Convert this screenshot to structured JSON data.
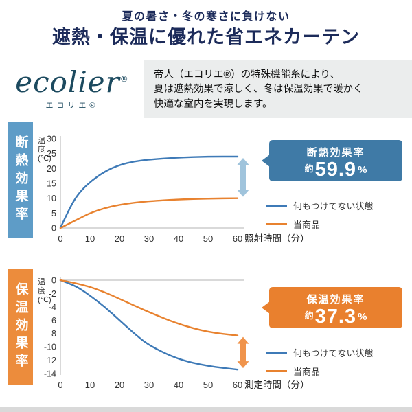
{
  "header": {
    "subtitle": "夏の暑さ・冬の寒さに負けない",
    "title": "遮熱・保温に優れた省エネカーテン",
    "color": "#1c2b5a"
  },
  "brand": {
    "logo": "ecolier",
    "registered_mark": "®",
    "logo_sub": "エコリエ®",
    "color": "#1c4a5f",
    "description_lines": [
      "帝人（エコリエ®）の特殊機能糸により、",
      "夏は遮熱効果で涼しく、冬は保温効果で暖かく",
      "快適な室内を実現します。"
    ]
  },
  "chart_data": [
    {
      "type": "line",
      "side_label": "断熱効果率",
      "side_color": "#5e9cc7",
      "ylabel": "温度(℃)",
      "ylabel_lines": [
        "温",
        "度",
        "(℃)"
      ],
      "xlabel": "照射時間（分）",
      "xlim": [
        0,
        60
      ],
      "ylim": [
        0,
        30
      ],
      "x_ticks": [
        0,
        10,
        20,
        30,
        40,
        50,
        60
      ],
      "y_ticks": [
        0,
        5,
        10,
        15,
        20,
        25,
        30
      ],
      "x": [
        0,
        3,
        6,
        10,
        15,
        20,
        25,
        30,
        40,
        50,
        60
      ],
      "series": [
        {
          "name": "何もつけてない状態",
          "color": "#3e7ab7",
          "values": [
            0,
            6.5,
            11.5,
            15.5,
            19,
            21.2,
            22.4,
            23,
            23.7,
            24,
            24
          ]
        },
        {
          "name": "当商品",
          "color": "#e8822f",
          "values": [
            0,
            1.5,
            3,
            5,
            6.7,
            7.8,
            8.5,
            9,
            9.6,
            9.9,
            10
          ]
        }
      ],
      "callout": {
        "label": "断熱効果率",
        "approx": "約",
        "value": "59.9",
        "unit": "%",
        "color": "#3f7aa6"
      },
      "arrow_color": "#a0c4dc"
    },
    {
      "type": "line",
      "side_label": "保温効果率",
      "side_color": "#ec8c3c",
      "ylabel": "温度(℃)",
      "ylabel_lines": [
        "温",
        "度",
        "(℃)"
      ],
      "xlabel": "測定時間（分）",
      "xlim": [
        0,
        60
      ],
      "ylim": [
        -14,
        0
      ],
      "x_ticks": [
        0,
        10,
        20,
        30,
        40,
        50,
        60
      ],
      "y_ticks": [
        0,
        -2,
        -4,
        -6,
        -8,
        -10,
        -12,
        -14
      ],
      "x": [
        0,
        3,
        6,
        10,
        15,
        20,
        25,
        30,
        40,
        50,
        60
      ],
      "series": [
        {
          "name": "何もつけてない状態",
          "color": "#3e7ab7",
          "values": [
            0,
            -0.5,
            -1.1,
            -2.3,
            -4.0,
            -6.0,
            -8.0,
            -9.8,
            -11.9,
            -12.9,
            -13.4
          ]
        },
        {
          "name": "当商品",
          "color": "#e8822f",
          "values": [
            0,
            -0.25,
            -0.55,
            -1.0,
            -1.8,
            -2.8,
            -3.8,
            -4.8,
            -6.6,
            -7.8,
            -8.3
          ]
        }
      ],
      "callout": {
        "label": "保温効果率",
        "approx": "約",
        "value": "37.3",
        "unit": "%",
        "color": "#e9802e"
      },
      "arrow_color": "#f0944c"
    }
  ]
}
